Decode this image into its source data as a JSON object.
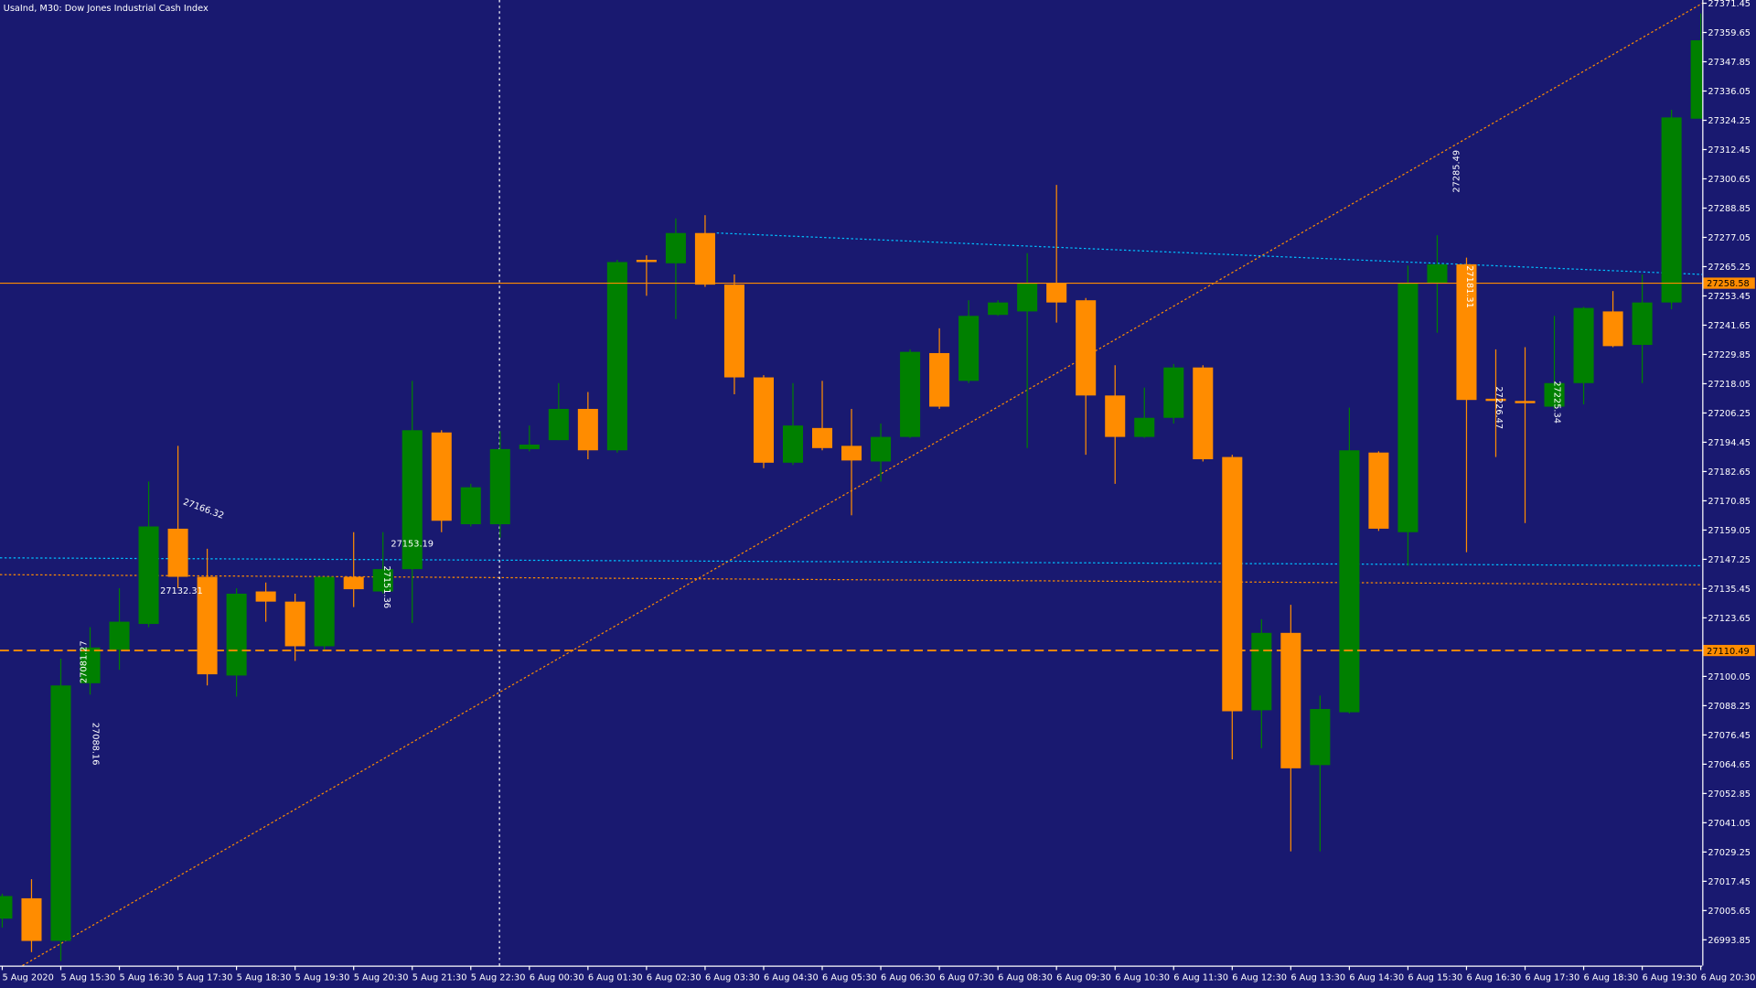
{
  "chart_data": {
    "type": "candlestick",
    "title": "UsaInd, M30:  Dow Jones Industrial Cash Index",
    "categories": [
      "5 Aug 2020",
      null,
      "5 Aug 15:30",
      null,
      "5 Aug 16:30",
      null,
      "5 Aug 17:30",
      null,
      "5 Aug 18:30",
      null,
      "5 Aug 19:30",
      null,
      "5 Aug 20:30",
      null,
      "5 Aug 21:30",
      null,
      "5 Aug 22:30",
      null,
      "6 Aug 00:30",
      null,
      "6 Aug 01:30",
      null,
      "6 Aug 02:30",
      null,
      "6 Aug 03:30",
      null,
      "6 Aug 04:30",
      null,
      "6 Aug 05:30",
      null,
      "6 Aug 06:30",
      null,
      "6 Aug 07:30",
      null,
      "6 Aug 08:30",
      null,
      "6 Aug 09:30",
      null,
      "6 Aug 10:30",
      null,
      "6 Aug 11:30",
      null,
      "6 Aug 12:30",
      null,
      "6 Aug 13:30",
      null,
      "6 Aug 14:30",
      null,
      "6 Aug 15:30",
      null,
      "6 Aug 16:30",
      null,
      "6 Aug 17:30",
      null,
      "6 Aug 18:30",
      null,
      "6 Aug 19:30",
      null,
      "6 Aug 20:30"
    ],
    "open": [
      27002.4,
      27010.6,
      26993.4,
      27097.3,
      27110.8,
      27121.2,
      27159.6,
      27140.2,
      27100.4,
      27134.3,
      27130.2,
      27112.2,
      27140.2,
      27134.3,
      27143.3,
      27198.4,
      27161.4,
      27161.4,
      27191.7,
      27195.3,
      27207.9,
      27191.2,
      27268.0,
      27266.6,
      27278.8,
      27258.0,
      27220.6,
      27186.2,
      27200.2,
      27193.0,
      27186.7,
      27196.6,
      27230.4,
      27219.2,
      27245.8,
      27247.2,
      27258.5,
      27251.7,
      27213.3,
      27196.6,
      27204.3,
      27224.6,
      27188.5,
      27086.4,
      27117.6,
      27064.3,
      27085.6,
      27190.3,
      27158.2,
      27258.5,
      27266.2,
      27212.0,
      27211.1,
      27208.8,
      27218.3,
      27247.2,
      27233.7,
      27250.8,
      27324.9
    ],
    "high": [
      27012.4,
      27018.3,
      27107.2,
      27119.9,
      27135.6,
      27178.6,
      27193.0,
      27151.5,
      27135.6,
      27137.9,
      27133.4,
      27140.2,
      27158.2,
      27158.2,
      27219.2,
      27199.3,
      27177.7,
      27198.9,
      27201.2,
      27218.3,
      27214.7,
      27268.0,
      27269.8,
      27284.7,
      27286.0,
      27262.1,
      27221.5,
      27218.3,
      27219.2,
      27207.9,
      27202.0,
      27231.9,
      27240.4,
      27251.7,
      27251.7,
      27270.7,
      27298.2,
      27252.6,
      27225.5,
      27216.5,
      27226.0,
      27225.5,
      27189.4,
      27123.1,
      27128.9,
      27092.3,
      27208.4,
      27190.8,
      27265.7,
      27277.9,
      27268.9,
      27231.9,
      27232.8,
      27245.4,
      27249.0,
      27255.4,
      27262.1,
      27328.5,
      27367.3
    ],
    "low": [
      26998.8,
      26988.9,
      26985.3,
      27092.7,
      27102.7,
      27119.9,
      27135.6,
      27096.4,
      27091.9,
      27122.1,
      27106.3,
      27110.8,
      27128.0,
      27133.4,
      27121.6,
      27158.2,
      27160.5,
      27156.0,
      27190.8,
      27195.3,
      27187.6,
      27190.3,
      27253.5,
      27244.1,
      27257.1,
      27213.8,
      27184.0,
      27185.3,
      27191.2,
      27165.0,
      27178.6,
      27196.2,
      27207.9,
      27218.3,
      27245.4,
      27192.1,
      27242.7,
      27189.4,
      27177.7,
      27196.2,
      27202.0,
      27186.7,
      27066.6,
      27071.1,
      27029.5,
      27029.5,
      27085.1,
      27158.7,
      27144.7,
      27238.6,
      27150.1,
      27188.5,
      27161.9,
      27207.9,
      27209.7,
      27232.8,
      27218.3,
      27248.1,
      27324.9
    ],
    "close": [
      27011.5,
      26993.4,
      27096.4,
      27111.7,
      27122.1,
      27160.5,
      27140.2,
      27100.9,
      27133.4,
      27130.2,
      27112.2,
      27140.2,
      27135.2,
      27143.3,
      27199.3,
      27162.8,
      27176.3,
      27191.7,
      27193.5,
      27207.9,
      27191.2,
      27267.1,
      27267.1,
      27278.8,
      27258.0,
      27220.6,
      27186.2,
      27201.2,
      27192.1,
      27187.1,
      27196.6,
      27230.9,
      27208.8,
      27245.4,
      27250.8,
      27258.5,
      27250.8,
      27213.3,
      27196.6,
      27204.3,
      27224.6,
      27187.6,
      27086.0,
      27117.6,
      27063.0,
      27086.9,
      27191.2,
      27159.6,
      27258.5,
      27266.2,
      27211.5,
      27211.1,
      27210.2,
      27218.3,
      27248.6,
      27233.2,
      27250.8,
      27325.4,
      27356.5
    ],
    "up_color": "#008000",
    "down_color": "#ff8c00",
    "ylim": [
      26983.46,
      27372.75
    ],
    "yticks": [
      27371.45,
      27359.65,
      27347.85,
      27336.05,
      27324.25,
      27312.45,
      27300.65,
      27288.85,
      27277.05,
      27265.25,
      27253.45,
      27241.65,
      27229.85,
      27218.05,
      27206.25,
      27194.45,
      27182.65,
      27170.85,
      27159.05,
      27147.25,
      27135.45,
      27123.65,
      27100.05,
      27088.25,
      27076.45,
      27064.65,
      27052.85,
      27041.05,
      27029.25,
      27017.45,
      27005.65,
      26993.85
    ],
    "hlines": [
      {
        "value": 27258.58,
        "style": "solid",
        "color": "#ff8c00"
      },
      {
        "value": 27110.49,
        "style": "dashed",
        "color": "#ff8c00"
      }
    ],
    "annotations": [
      "27081.27",
      "27088.16",
      "27132.31",
      "27166.32",
      "27153.19",
      "27151.36",
      "27181.31",
      "27226.47",
      "27225.34",
      "27285.49"
    ]
  }
}
